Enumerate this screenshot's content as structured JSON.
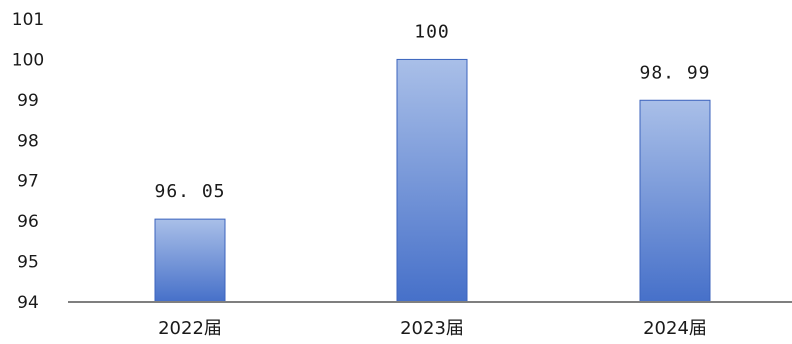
{
  "chart_data": {
    "type": "bar",
    "categories": [
      "2022届",
      "2023届",
      "2024届"
    ],
    "values": [
      96.05,
      100,
      98.99
    ],
    "data_labels": [
      "96. 05",
      "100",
      "98. 99"
    ],
    "y_ticks": [
      "94",
      "95",
      "96",
      "97",
      "98",
      "99",
      "100",
      "101"
    ],
    "ylim": [
      94,
      101
    ],
    "grid": false,
    "legend": "none",
    "bar_color_top": "#a9bfe8",
    "bar_color_bottom": "#4670c9",
    "axis_color": "#7f7f7f"
  }
}
